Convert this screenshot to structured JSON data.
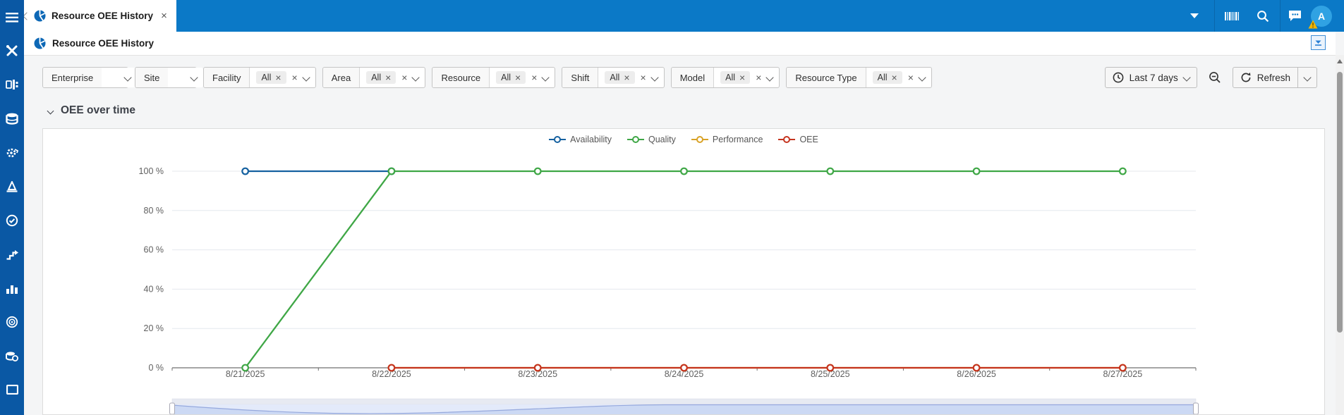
{
  "colors": {
    "sidebar": "#0a58a4",
    "topbar": "#0b79c7",
    "avatar": "#30a2e3",
    "warning_badge": "#f0b400",
    "series_availability": "#1561a0",
    "series_quality": "#3fa746",
    "series_performance": "#d9a226",
    "series_oee": "#c5341f"
  },
  "sidebar_items": [
    "menu",
    "maintenance-tools",
    "equipment",
    "database",
    "gear-sync",
    "cone",
    "quality-check",
    "process-steps",
    "bar-chart",
    "target",
    "historian-data",
    "display"
  ],
  "topbar": {
    "tab_title": "Resource OEE History",
    "avatar_letter": "A"
  },
  "title_row": {
    "title": "Resource OEE History"
  },
  "filters": [
    {
      "label": "Enterprise",
      "value": ""
    },
    {
      "label": "Site",
      "value": ""
    },
    {
      "label": "Facility",
      "value": "All"
    },
    {
      "label": "Area",
      "value": "All"
    },
    {
      "label": "Resource",
      "value": "All"
    },
    {
      "label": "Shift",
      "value": "All"
    },
    {
      "label": "Model",
      "value": "All"
    },
    {
      "label": "Resource Type",
      "value": "All"
    }
  ],
  "toolbar": {
    "time_range": "Last 7 days",
    "refresh_label": "Refresh"
  },
  "section": {
    "title": "OEE over time"
  },
  "chart_data": {
    "type": "line",
    "title": "OEE over time",
    "x_categories": [
      "8/21/2025",
      "8/22/2025",
      "8/23/2025",
      "8/24/2025",
      "8/25/2025",
      "8/26/2025",
      "8/27/2025"
    ],
    "y_ticks": [
      0,
      20,
      40,
      60,
      80,
      100
    ],
    "y_tick_suffix": " %",
    "ylim": [
      0,
      100
    ],
    "grid": "horizontal",
    "legend_position": "top-center",
    "series": [
      {
        "name": "Availability",
        "color": "#1561a0",
        "data": [
          [
            0,
            100
          ],
          [
            1,
            100
          ]
        ]
      },
      {
        "name": "Quality",
        "color": "#3fa746",
        "data": [
          [
            0,
            0
          ],
          [
            1,
            100
          ],
          [
            2,
            100
          ],
          [
            3,
            100
          ],
          [
            4,
            100
          ],
          [
            5,
            100
          ],
          [
            6,
            100
          ]
        ]
      },
      {
        "name": "Performance",
        "color": "#d9a226",
        "data": [
          [
            1,
            0
          ],
          [
            2,
            0
          ],
          [
            3,
            0
          ],
          [
            4,
            0
          ],
          [
            5,
            0
          ],
          [
            6,
            0
          ]
        ],
        "note": "overlapped by OEE line at 0 %"
      },
      {
        "name": "OEE",
        "color": "#c5341f",
        "data": [
          [
            1,
            0
          ],
          [
            2,
            0
          ],
          [
            3,
            0
          ],
          [
            4,
            0
          ],
          [
            5,
            0
          ],
          [
            6,
            0
          ]
        ]
      }
    ]
  }
}
